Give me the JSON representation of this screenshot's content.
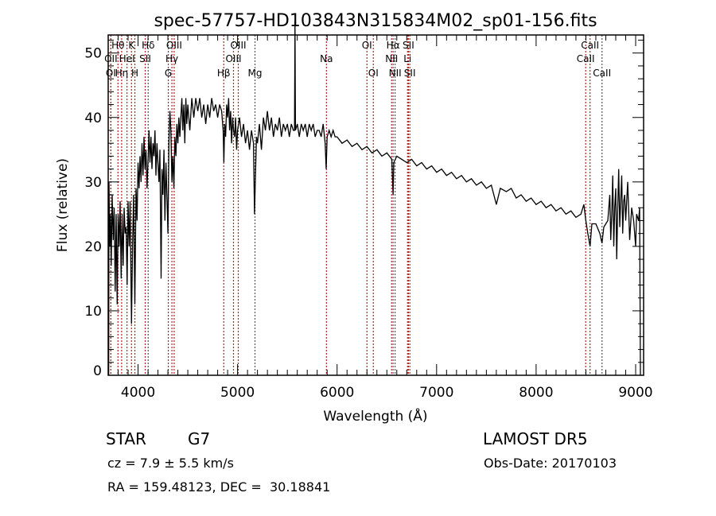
{
  "chart_data": {
    "type": "line",
    "title": "spec-57757-HD103843N315834M02_sp01-156.fits",
    "xlabel": "Wavelength (Å)",
    "ylabel": "Flux (relative)",
    "xlim": [
      3700,
      9080
    ],
    "ylim": [
      0,
      52.8
    ],
    "xticks": [
      4000,
      5000,
      6000,
      7000,
      8000,
      9000
    ],
    "xtick_labels": [
      "4000",
      "5000",
      "6000",
      "7000",
      "8000",
      "9000"
    ],
    "yticks": [
      0,
      10,
      20,
      30,
      40,
      50
    ],
    "ytick_labels": [
      "0",
      "10",
      "20",
      "30",
      "40",
      "50"
    ],
    "grid": false,
    "series": [
      {
        "name": "spectrum",
        "color": "#000000",
        "points": [
          [
            3705,
            0
          ],
          [
            3708,
            30
          ],
          [
            3715,
            20
          ],
          [
            3722,
            25
          ],
          [
            3730,
            17
          ],
          [
            3740,
            28
          ],
          [
            3750,
            21
          ],
          [
            3760,
            26
          ],
          [
            3770,
            13
          ],
          [
            3780,
            25
          ],
          [
            3790,
            11
          ],
          [
            3800,
            25
          ],
          [
            3810,
            20
          ],
          [
            3820,
            27
          ],
          [
            3830,
            15
          ],
          [
            3840,
            25
          ],
          [
            3850,
            17
          ],
          [
            3860,
            26
          ],
          [
            3870,
            22
          ],
          [
            3880,
            23
          ],
          [
            3890,
            14
          ],
          [
            3900,
            27
          ],
          [
            3910,
            20
          ],
          [
            3920,
            27
          ],
          [
            3934,
            8
          ],
          [
            3945,
            20
          ],
          [
            3955,
            28
          ],
          [
            3968,
            11
          ],
          [
            3980,
            29
          ],
          [
            3990,
            24
          ],
          [
            4000,
            33
          ],
          [
            4010,
            29
          ],
          [
            4020,
            34
          ],
          [
            4030,
            30
          ],
          [
            4040,
            36
          ],
          [
            4050,
            31
          ],
          [
            4060,
            37
          ],
          [
            4070,
            32
          ],
          [
            4080,
            35
          ],
          [
            4090,
            29
          ],
          [
            4102,
            34
          ],
          [
            4110,
            38
          ],
          [
            4120,
            33
          ],
          [
            4130,
            37
          ],
          [
            4140,
            32
          ],
          [
            4150,
            36
          ],
          [
            4160,
            34
          ],
          [
            4170,
            38
          ],
          [
            4180,
            31
          ],
          [
            4190,
            36
          ],
          [
            4200,
            33
          ],
          [
            4210,
            30
          ],
          [
            4220,
            35
          ],
          [
            4232,
            15
          ],
          [
            4240,
            32
          ],
          [
            4250,
            28
          ],
          [
            4260,
            35
          ],
          [
            4270,
            24
          ],
          [
            4280,
            33
          ],
          [
            4290,
            28
          ],
          [
            4300,
            22
          ],
          [
            4310,
            36
          ],
          [
            4320,
            41
          ],
          [
            4330,
            38
          ],
          [
            4340,
            30
          ],
          [
            4350,
            34
          ],
          [
            4360,
            29
          ],
          [
            4370,
            37
          ],
          [
            4380,
            34
          ],
          [
            4390,
            39
          ],
          [
            4400,
            36
          ],
          [
            4410,
            40
          ],
          [
            4420,
            37
          ],
          [
            4430,
            40
          ],
          [
            4440,
            43
          ],
          [
            4450,
            38
          ],
          [
            4460,
            42
          ],
          [
            4470,
            36
          ],
          [
            4480,
            43
          ],
          [
            4490,
            39
          ],
          [
            4500,
            42
          ],
          [
            4520,
            38
          ],
          [
            4540,
            43
          ],
          [
            4560,
            40
          ],
          [
            4580,
            43
          ],
          [
            4600,
            41
          ],
          [
            4620,
            43
          ],
          [
            4640,
            40
          ],
          [
            4660,
            42
          ],
          [
            4680,
            39
          ],
          [
            4700,
            42
          ],
          [
            4720,
            40
          ],
          [
            4740,
            43
          ],
          [
            4760,
            41
          ],
          [
            4780,
            42
          ],
          [
            4800,
            40
          ],
          [
            4820,
            42
          ],
          [
            4840,
            41
          ],
          [
            4855,
            38
          ],
          [
            4862,
            33
          ],
          [
            4870,
            39
          ],
          [
            4880,
            37
          ],
          [
            4890,
            42
          ],
          [
            4900,
            40
          ],
          [
            4910,
            43
          ],
          [
            4920,
            38
          ],
          [
            4930,
            41
          ],
          [
            4940,
            36
          ],
          [
            4950,
            40
          ],
          [
            4960,
            38
          ],
          [
            4970,
            37
          ],
          [
            4980,
            40
          ],
          [
            4990,
            35
          ],
          [
            5000,
            38
          ],
          [
            5020,
            40
          ],
          [
            5040,
            37
          ],
          [
            5060,
            39
          ],
          [
            5080,
            36
          ],
          [
            5100,
            38
          ],
          [
            5120,
            35
          ],
          [
            5140,
            38
          ],
          [
            5160,
            36
          ],
          [
            5170,
            25
          ],
          [
            5180,
            31
          ],
          [
            5190,
            37
          ],
          [
            5200,
            36
          ],
          [
            5220,
            39
          ],
          [
            5240,
            35
          ],
          [
            5260,
            40
          ],
          [
            5280,
            38
          ],
          [
            5300,
            41
          ],
          [
            5320,
            38
          ],
          [
            5340,
            40
          ],
          [
            5360,
            37
          ],
          [
            5380,
            39
          ],
          [
            5400,
            38
          ],
          [
            5420,
            40
          ],
          [
            5440,
            37
          ],
          [
            5460,
            39
          ],
          [
            5480,
            38
          ],
          [
            5500,
            39
          ],
          [
            5520,
            37
          ],
          [
            5540,
            39
          ],
          [
            5560,
            38
          ],
          [
            5572,
            38
          ],
          [
            5577,
            55
          ],
          [
            5582,
            38
          ],
          [
            5600,
            39
          ],
          [
            5620,
            37
          ],
          [
            5640,
            39
          ],
          [
            5660,
            38
          ],
          [
            5680,
            39
          ],
          [
            5700,
            37
          ],
          [
            5720,
            39
          ],
          [
            5740,
            38
          ],
          [
            5760,
            39
          ],
          [
            5780,
            37
          ],
          [
            5800,
            38
          ],
          [
            5820,
            38
          ],
          [
            5840,
            37
          ],
          [
            5860,
            39
          ],
          [
            5880,
            36
          ],
          [
            5890,
            32
          ],
          [
            5900,
            37
          ],
          [
            5920,
            38
          ],
          [
            5940,
            37
          ],
          [
            5960,
            38
          ],
          [
            5980,
            37
          ],
          [
            6000,
            37
          ],
          [
            6050,
            36
          ],
          [
            6100,
            36.5
          ],
          [
            6150,
            35.5
          ],
          [
            6200,
            36
          ],
          [
            6250,
            35
          ],
          [
            6300,
            35.5
          ],
          [
            6350,
            34.5
          ],
          [
            6400,
            35
          ],
          [
            6450,
            34
          ],
          [
            6500,
            34.5
          ],
          [
            6550,
            33.5
          ],
          [
            6563,
            28
          ],
          [
            6570,
            33
          ],
          [
            6600,
            34
          ],
          [
            6650,
            33.5
          ],
          [
            6700,
            33
          ],
          [
            6750,
            33.5
          ],
          [
            6800,
            32.5
          ],
          [
            6850,
            33
          ],
          [
            6900,
            32
          ],
          [
            6950,
            32.5
          ],
          [
            7000,
            31.5
          ],
          [
            7050,
            32
          ],
          [
            7100,
            31
          ],
          [
            7150,
            31.5
          ],
          [
            7200,
            30.5
          ],
          [
            7250,
            31
          ],
          [
            7300,
            30
          ],
          [
            7350,
            30.5
          ],
          [
            7400,
            29.5
          ],
          [
            7450,
            30
          ],
          [
            7500,
            29
          ],
          [
            7550,
            29.5
          ],
          [
            7600,
            26.5
          ],
          [
            7640,
            29
          ],
          [
            7700,
            28.5
          ],
          [
            7750,
            29
          ],
          [
            7800,
            27.5
          ],
          [
            7850,
            28
          ],
          [
            7900,
            27
          ],
          [
            7950,
            27.5
          ],
          [
            8000,
            26.5
          ],
          [
            8050,
            27
          ],
          [
            8100,
            26
          ],
          [
            8150,
            26.5
          ],
          [
            8200,
            25.5
          ],
          [
            8250,
            26
          ],
          [
            8300,
            25
          ],
          [
            8350,
            25.5
          ],
          [
            8400,
            24.5
          ],
          [
            8450,
            25
          ],
          [
            8480,
            26.5
          ],
          [
            8500,
            24
          ],
          [
            8520,
            22
          ],
          [
            8542,
            20
          ],
          [
            8560,
            23.5
          ],
          [
            8600,
            23.5
          ],
          [
            8640,
            22
          ],
          [
            8662,
            20.5
          ],
          [
            8680,
            23
          ],
          [
            8700,
            23.5
          ],
          [
            8720,
            24
          ],
          [
            8740,
            28
          ],
          [
            8750,
            21
          ],
          [
            8760,
            25
          ],
          [
            8770,
            31
          ],
          [
            8780,
            20
          ],
          [
            8790,
            26
          ],
          [
            8800,
            29
          ],
          [
            8810,
            18
          ],
          [
            8820,
            26
          ],
          [
            8830,
            32
          ],
          [
            8840,
            23
          ],
          [
            8850,
            27
          ],
          [
            8860,
            31
          ],
          [
            8870,
            22
          ],
          [
            8880,
            27
          ],
          [
            8890,
            28
          ],
          [
            8900,
            24
          ],
          [
            8920,
            30
          ],
          [
            8940,
            21
          ],
          [
            8960,
            26
          ],
          [
            8980,
            24
          ],
          [
            9000,
            20
          ],
          [
            9010,
            25
          ],
          [
            9030,
            24
          ],
          [
            9040,
            26
          ],
          [
            9048,
            0
          ]
        ]
      }
    ],
    "lines": [
      {
        "label": "OII",
        "wavelength": 3727,
        "row": 2,
        "color": "#b22222"
      },
      {
        "label": "OI",
        "wavelength": 3727,
        "row": 3,
        "color": "#b22222"
      },
      {
        "label": "Hθ",
        "wavelength": 3798,
        "row": 1,
        "color": "#b22222"
      },
      {
        "label": "Hη",
        "wavelength": 3835,
        "row": 3,
        "color": "#b22222"
      },
      {
        "label": "HeI",
        "wavelength": 3889,
        "row": 2,
        "color": "#b22222"
      },
      {
        "label": "K",
        "wavelength": 3934,
        "row": 1,
        "color": "#b22222"
      },
      {
        "label": "H",
        "wavelength": 3968,
        "row": 3,
        "color": "#b22222"
      },
      {
        "label": "SII",
        "wavelength": 4072,
        "row": 2,
        "color": "#b22222"
      },
      {
        "label": "Hδ",
        "wavelength": 4102,
        "row": 1,
        "color": "#555555"
      },
      {
        "label": "G",
        "wavelength": 4304,
        "row": 3,
        "color": "#b22222"
      },
      {
        "label": "Hγ",
        "wavelength": 4340,
        "row": 2,
        "color": "#b22222"
      },
      {
        "label": "OIII",
        "wavelength": 4363,
        "row": 1,
        "color": "#b22222"
      },
      {
        "label": "Hβ",
        "wavelength": 4861,
        "row": 3,
        "color": "#b22222"
      },
      {
        "label": "OIII",
        "wavelength": 4959,
        "row": 2,
        "color": "#b22222"
      },
      {
        "label": "OIII",
        "wavelength": 5007,
        "row": 1,
        "color": "#b22222"
      },
      {
        "label": "Mg",
        "wavelength": 5175,
        "row": 3,
        "color": "#555555"
      },
      {
        "label": "Na",
        "wavelength": 5893,
        "row": 2,
        "color": "#b22222"
      },
      {
        "label": "OI",
        "wavelength": 6300,
        "row": 1,
        "color": "#b22222"
      },
      {
        "label": "OI",
        "wavelength": 6364,
        "row": 3,
        "color": "#b22222"
      },
      {
        "label": "NII",
        "wavelength": 6548,
        "row": 2,
        "color": "#b22222"
      },
      {
        "label": "Hα",
        "wavelength": 6563,
        "row": 1,
        "color": "#555555"
      },
      {
        "label": "NII",
        "wavelength": 6583,
        "row": 3,
        "color": "#555555"
      },
      {
        "label": "Li",
        "wavelength": 6708,
        "row": 2,
        "color": "#b22222"
      },
      {
        "label": "SII",
        "wavelength": 6717,
        "row": 1,
        "color": "#b22222"
      },
      {
        "label": "SII",
        "wavelength": 6731,
        "row": 3,
        "color": "#b22222"
      },
      {
        "label": "CaII",
        "wavelength": 8498,
        "row": 2,
        "color": "#b22222"
      },
      {
        "label": "CaII",
        "wavelength": 8542,
        "row": 1,
        "color": "#b22222"
      },
      {
        "label": "CaII",
        "wavelength": 8662,
        "row": 3,
        "color": "#555555"
      }
    ]
  },
  "info": {
    "object_class": "STAR",
    "subclass": "G7",
    "survey": "LAMOST DR5",
    "cz": "cz = 7.9 ± 5.5 km/s",
    "obs_date": "Obs-Date: 20170103",
    "coords": "RA = 159.48123, DEC =  30.18841"
  }
}
